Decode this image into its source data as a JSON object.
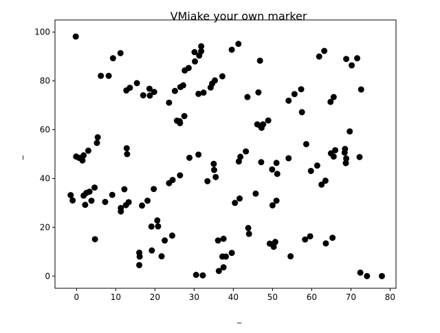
{
  "chart_data": {
    "type": "scatter",
    "title": "VMiake your own marker",
    "xlabel": "_",
    "ylabel": "_",
    "xlim": [
      -5.5,
      81.5
    ],
    "ylim": [
      -5,
      105
    ],
    "x_ticks": [
      0,
      10,
      20,
      30,
      40,
      50,
      60,
      70,
      80
    ],
    "y_ticks": [
      0,
      20,
      40,
      60,
      80,
      100
    ],
    "grid": false,
    "marker_color": "#000000",
    "points": [
      [
        -0.2,
        98.2
      ],
      [
        11.2,
        91.4
      ],
      [
        9.3,
        89.3
      ],
      [
        6.2,
        82.1
      ],
      [
        8.2,
        82.1
      ],
      [
        15.4,
        79.1
      ],
      [
        13.6,
        77.2
      ],
      [
        12.7,
        76.1
      ],
      [
        18.6,
        76.8
      ],
      [
        19.8,
        75.5
      ],
      [
        17.0,
        74.1
      ],
      [
        18.7,
        74.0
      ],
      [
        23.6,
        71.1
      ],
      [
        25.1,
        75.9
      ],
      [
        26.5,
        77.5
      ],
      [
        27.2,
        78.2
      ],
      [
        27.6,
        84.3
      ],
      [
        28.6,
        85.3
      ],
      [
        30.1,
        91.8
      ],
      [
        30.2,
        88.0
      ],
      [
        31.3,
        90.4
      ],
      [
        31.8,
        92.2
      ],
      [
        31.8,
        94.2
      ],
      [
        31.1,
        74.7
      ],
      [
        32.4,
        75.2
      ],
      [
        34.2,
        77.3
      ],
      [
        34.6,
        78.9
      ],
      [
        35.3,
        80.2
      ],
      [
        37.2,
        81.9
      ],
      [
        39.6,
        92.8
      ],
      [
        41.3,
        95.2
      ],
      [
        46.8,
        88.3
      ],
      [
        43.6,
        73.4
      ],
      [
        46.4,
        75.3
      ],
      [
        26.3,
        63.5
      ],
      [
        26.4,
        62.7
      ],
      [
        27.5,
        65.6
      ],
      [
        25.6,
        63.7
      ],
      [
        46.1,
        62.2
      ],
      [
        46.9,
        61.6
      ],
      [
        47.2,
        60.8
      ],
      [
        47.6,
        62.2
      ],
      [
        48.9,
        63.8
      ],
      [
        54.1,
        71.9
      ],
      [
        55.6,
        74.6
      ],
      [
        57.3,
        76.6
      ],
      [
        57.5,
        67.2
      ],
      [
        61.9,
        90.0
      ],
      [
        63.2,
        92.3
      ],
      [
        64.8,
        71.4
      ],
      [
        65.6,
        73.4
      ],
      [
        68.8,
        89.0
      ],
      [
        70.2,
        86.4
      ],
      [
        71.6,
        89.3
      ],
      [
        72.6,
        76.5
      ],
      [
        69.7,
        59.3
      ],
      [
        58.6,
        54.1
      ],
      [
        61.4,
        45.3
      ],
      [
        59.8,
        43.1
      ],
      [
        62.5,
        37.5
      ],
      [
        63.5,
        39.1
      ],
      [
        64.9,
        50.3
      ],
      [
        65.6,
        49.0
      ],
      [
        66.0,
        51.6
      ],
      [
        68.4,
        50.6
      ],
      [
        68.5,
        52.1
      ],
      [
        68.8,
        48.2
      ],
      [
        68.7,
        46.3
      ],
      [
        72.2,
        48.8
      ],
      [
        54.1,
        48.3
      ],
      [
        47.1,
        46.7
      ],
      [
        49.9,
        43.7
      ],
      [
        51.0,
        46.4
      ],
      [
        51.2,
        41.9
      ],
      [
        50.0,
        29.0
      ],
      [
        51.0,
        30.9
      ],
      [
        45.7,
        33.8
      ],
      [
        43.2,
        51.1
      ],
      [
        41.8,
        48.9
      ],
      [
        41.4,
        47.0
      ],
      [
        41.6,
        31.8
      ],
      [
        40.4,
        30.0
      ],
      [
        35.0,
        46.0
      ],
      [
        35.1,
        43.5
      ],
      [
        35.5,
        40.6
      ],
      [
        33.4,
        38.9
      ],
      [
        31.1,
        49.8
      ],
      [
        28.8,
        48.5
      ],
      [
        26.4,
        41.3
      ],
      [
        24.5,
        39.4
      ],
      [
        23.6,
        38.1
      ],
      [
        19.7,
        35.7
      ],
      [
        18.1,
        30.9
      ],
      [
        16.7,
        28.9
      ],
      [
        13.3,
        30.3
      ],
      [
        12.6,
        29.1
      ],
      [
        12.2,
        35.6
      ],
      [
        11.3,
        27.9
      ],
      [
        11.3,
        26.5
      ],
      [
        9.1,
        33.3
      ],
      [
        7.3,
        30.4
      ],
      [
        12.8,
        52.4
      ],
      [
        12.9,
        50.0
      ],
      [
        5.2,
        54.6
      ],
      [
        5.4,
        56.9
      ],
      [
        3.0,
        51.4
      ],
      [
        1.8,
        49.5
      ],
      [
        1.5,
        47.4
      ],
      [
        0.6,
        48.5
      ],
      [
        -0.1,
        49.0
      ],
      [
        -1.5,
        33.2
      ],
      [
        -1.0,
        31.0
      ],
      [
        1.8,
        33.0
      ],
      [
        2.5,
        34.1
      ],
      [
        3.3,
        34.6
      ],
      [
        3.8,
        30.9
      ],
      [
        4.6,
        36.3
      ],
      [
        2.2,
        29.2
      ],
      [
        4.7,
        15.1
      ],
      [
        16.0,
        9.6
      ],
      [
        16.1,
        8.0
      ],
      [
        16.0,
        4.5
      ],
      [
        19.1,
        20.3
      ],
      [
        19.2,
        10.5
      ],
      [
        20.6,
        22.8
      ],
      [
        20.8,
        20.4
      ],
      [
        21.7,
        8.1
      ],
      [
        22.5,
        14.6
      ],
      [
        24.4,
        16.6
      ],
      [
        30.5,
        0.5
      ],
      [
        32.2,
        0.3
      ],
      [
        36.1,
        14.6
      ],
      [
        37.5,
        15.3
      ],
      [
        37.2,
        8.0
      ],
      [
        38.1,
        8.0
      ],
      [
        39.6,
        9.5
      ],
      [
        37.5,
        3.6
      ],
      [
        36.3,
        2.1
      ],
      [
        43.8,
        19.7
      ],
      [
        44.0,
        17.3
      ],
      [
        49.3,
        13.3
      ],
      [
        50.3,
        12.0
      ],
      [
        50.7,
        14.0
      ],
      [
        54.6,
        8.1
      ],
      [
        58.3,
        15.0
      ],
      [
        59.6,
        16.3
      ],
      [
        63.6,
        13.4
      ],
      [
        65.3,
        15.7
      ],
      [
        72.4,
        1.4
      ],
      [
        74.1,
        0.0
      ],
      [
        77.9,
        0.0
      ]
    ]
  }
}
